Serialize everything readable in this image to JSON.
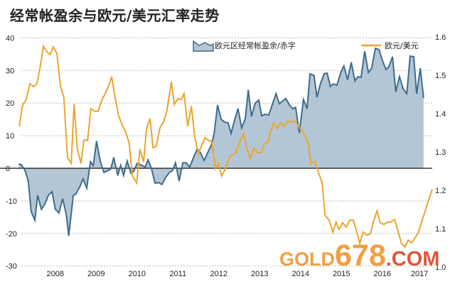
{
  "chart_data": {
    "type": "line",
    "title": "经常帐盈余与欧元/美元汇率走势",
    "xlabel": "",
    "ylabel_left": "",
    "ylabel_right": "",
    "x_tick_labels": [
      "2008",
      "2009",
      "2010",
      "2011",
      "2012",
      "2013",
      "2014",
      "2015",
      "2016",
      "2017"
    ],
    "y_left_ticks": [
      "40",
      "30",
      "20",
      "10",
      "0",
      "-10",
      "-20",
      "-30"
    ],
    "y_left_range": [
      -30,
      40
    ],
    "y_right_ticks": [
      "1.6",
      "1.5",
      "1.4",
      "1.3",
      "1.2",
      "1.1",
      "1.0"
    ],
    "y_right_range": [
      1.0,
      1.6
    ],
    "grid": true,
    "legend_position": "top",
    "series": [
      {
        "name": "欧元区经常帐盈余/赤字",
        "type": "area",
        "axis": "left",
        "color": "#3f6c8c",
        "fill": "#b3c6d5",
        "x": [
          2007.61,
          2007.67,
          2007.76,
          2007.84,
          2007.91,
          2008.0,
          2008.07,
          2008.16,
          2008.24,
          2008.33,
          2008.42,
          2008.5,
          2008.59,
          2008.68,
          2008.77,
          2008.83,
          2008.94,
          2009.01,
          2009.11,
          2009.18,
          2009.27,
          2009.36,
          2009.43,
          2009.51,
          2009.6,
          2009.69,
          2009.79,
          2009.86,
          2009.93,
          2010.03,
          2010.1,
          2010.17,
          2010.26,
          2010.35,
          2010.42,
          2010.5,
          2010.59,
          2010.7,
          2010.77,
          2010.85,
          2010.94,
          2011.03,
          2011.11,
          2011.2,
          2011.29,
          2011.37,
          2011.44,
          2011.53,
          2011.62,
          2011.7,
          2011.79,
          2011.88,
          2011.97,
          2012.05,
          2012.14,
          2012.23,
          2012.31,
          2012.38,
          2012.47,
          2012.56,
          2012.64,
          2012.73,
          2012.8,
          2012.89,
          2012.97,
          2013.06,
          2013.15,
          2013.22,
          2013.3,
          2013.39,
          2013.48,
          2013.55,
          2013.63,
          2013.72,
          2013.81,
          2013.9,
          2013.98,
          2014.05,
          2014.14,
          2014.23,
          2014.31,
          2014.38,
          2014.47,
          2014.57,
          2014.66,
          2014.73,
          2014.83,
          2014.9,
          2014.99,
          2015.08,
          2015.15,
          2015.23,
          2015.3,
          2015.39,
          2015.48,
          2015.56,
          2015.65,
          2015.74,
          2015.83,
          2015.9,
          2015.98,
          2016.07,
          2016.16,
          2016.24,
          2016.33,
          2016.42,
          2016.5,
          2016.59,
          2016.66,
          2016.75,
          2016.83,
          2016.92,
          2017.01,
          2017.1,
          2017.18,
          2017.27,
          2017.34,
          2017.43,
          2017.51
        ],
        "values": [
          1.3,
          1.1,
          -0.7,
          -3.9,
          -13.3,
          -15.9,
          -8.3,
          -12.6,
          -11.1,
          -8.3,
          -7.2,
          -12.6,
          -13.7,
          -9.4,
          -14.2,
          -20.7,
          -8.3,
          -7.8,
          -5.4,
          -3.3,
          -6.1,
          2.0,
          0.9,
          8.3,
          2.2,
          -1.3,
          -0.7,
          -0.2,
          3.3,
          -2.2,
          0.9,
          -2.2,
          2.2,
          -1.5,
          -0.9,
          1.5,
          1.1,
          0.4,
          2.6,
          0,
          -4.6,
          -4.4,
          -5.0,
          -2.8,
          -1.3,
          -0.7,
          1.7,
          -3.9,
          1.7,
          1.7,
          0.4,
          3.3,
          5.9,
          4.8,
          2.4,
          4.8,
          7.0,
          10.2,
          19.4,
          15.0,
          14.2,
          13.9,
          10.7,
          15.0,
          18.3,
          12.4,
          15.3,
          24.0,
          15.9,
          20.0,
          20.9,
          16.1,
          16.6,
          16.3,
          19.6,
          22.9,
          19.8,
          20.5,
          21.4,
          19.4,
          18.3,
          18.7,
          10.9,
          21.1,
          18.3,
          29.0,
          28.5,
          21.8,
          26.1,
          29.0,
          29.2,
          25.1,
          25.9,
          25.5,
          29.2,
          31.4,
          27.2,
          32.5,
          26.8,
          28.1,
          27.9,
          35.9,
          29.4,
          30.7,
          36.8,
          36.4,
          33.1,
          30.3,
          31.2,
          34.2,
          23.5,
          28.1,
          24.4,
          22.9,
          34.4,
          34.2,
          22.9,
          30.7,
          21.6
        ]
      },
      {
        "name": "欧元/美元",
        "type": "line",
        "axis": "right",
        "color": "#eda42d",
        "x": [
          2007.62,
          2007.7,
          2007.79,
          2007.88,
          2007.97,
          2008.05,
          2008.12,
          2008.21,
          2008.3,
          2008.37,
          2008.45,
          2008.54,
          2008.63,
          2008.71,
          2008.8,
          2008.89,
          2008.96,
          2009.04,
          2009.13,
          2009.2,
          2009.29,
          2009.37,
          2009.46,
          2009.55,
          2009.63,
          2009.72,
          2009.81,
          2009.88,
          2009.97,
          2010.05,
          2010.14,
          2010.23,
          2010.31,
          2010.38,
          2010.49,
          2010.57,
          2010.66,
          2010.73,
          2010.82,
          2010.89,
          2010.97,
          2011.06,
          2011.15,
          2011.23,
          2011.34,
          2011.41,
          2011.5,
          2011.58,
          2011.65,
          2011.74,
          2011.83,
          2011.91,
          2012.0,
          2012.09,
          2012.17,
          2012.24,
          2012.33,
          2012.42,
          2012.49,
          2012.57,
          2012.66,
          2012.75,
          2012.83,
          2012.92,
          2013.01,
          2013.11,
          2013.18,
          2013.27,
          2013.36,
          2013.44,
          2013.53,
          2013.62,
          2013.7,
          2013.77,
          2013.84,
          2013.93,
          2014.02,
          2014.1,
          2014.19,
          2014.28,
          2014.37,
          2014.45,
          2014.54,
          2014.63,
          2014.7,
          2014.75,
          2014.85,
          2014.92,
          2015.03,
          2015.1,
          2015.2,
          2015.29,
          2015.37,
          2015.44,
          2015.53,
          2015.62,
          2015.7,
          2015.79,
          2015.86,
          2015.95,
          2016.03,
          2016.12,
          2016.21,
          2016.28,
          2016.37,
          2016.45,
          2016.54,
          2016.63,
          2016.71,
          2016.8,
          2016.89,
          2016.97,
          2017.06,
          2017.13,
          2017.22,
          2017.3,
          2017.37,
          2017.46,
          2017.55,
          2017.63,
          2017.72
        ],
        "values": [
          1.367,
          1.422,
          1.437,
          1.478,
          1.47,
          1.478,
          1.515,
          1.576,
          1.561,
          1.554,
          1.574,
          1.557,
          1.47,
          1.443,
          1.285,
          1.27,
          1.424,
          1.307,
          1.27,
          1.331,
          1.33,
          1.413,
          1.406,
          1.406,
          1.433,
          1.452,
          1.474,
          1.496,
          1.437,
          1.394,
          1.369,
          1.35,
          1.322,
          1.239,
          1.219,
          1.307,
          1.274,
          1.359,
          1.387,
          1.311,
          1.315,
          1.363,
          1.378,
          1.407,
          1.483,
          1.424,
          1.439,
          1.437,
          1.452,
          1.367,
          1.419,
          1.341,
          1.294,
          1.32,
          1.337,
          1.331,
          1.326,
          1.256,
          1.27,
          1.237,
          1.256,
          1.285,
          1.293,
          1.298,
          1.326,
          1.348,
          1.311,
          1.283,
          1.311,
          1.298,
          1.298,
          1.322,
          1.326,
          1.354,
          1.376,
          1.361,
          1.376,
          1.367,
          1.38,
          1.378,
          1.381,
          1.367,
          1.354,
          1.339,
          1.317,
          1.269,
          1.276,
          1.252,
          1.219,
          1.135,
          1.122,
          1.091,
          1.117,
          1.098,
          1.115,
          1.104,
          1.122,
          1.122,
          1.098,
          1.061,
          1.091,
          1.083,
          1.087,
          1.117,
          1.146,
          1.115,
          1.111,
          1.117,
          1.117,
          1.124,
          1.091,
          1.061,
          1.052,
          1.07,
          1.063,
          1.076,
          1.087,
          1.117,
          1.146,
          1.174,
          1.202
        ]
      }
    ],
    "annotations": []
  },
  "watermark": {
    "part1": "GOLD",
    "part2": "678",
    "part3": ".COM",
    "color1": "#f0a040",
    "color2": "#e0553a"
  }
}
